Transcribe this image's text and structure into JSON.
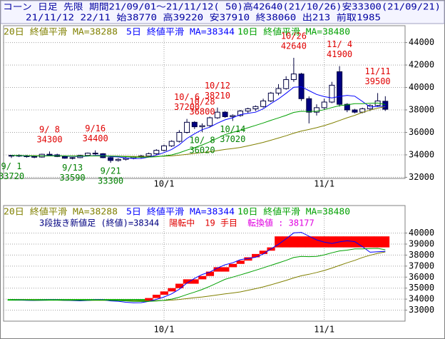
{
  "header": {
    "line1": "コーン 日足 先限 期間21/09/01～21/11/12( 50)高42640(21/10/26)安33300(21/09/21)",
    "line2": "21/11/12 22/11 始38770 高39220 安37910 終38060 出213 前取1985"
  },
  "chart_data": [
    {
      "type": "candlestick",
      "categories": [
        null,
        null,
        null,
        null,
        null,
        null,
        null,
        null,
        null,
        null,
        null,
        null,
        null,
        null,
        null,
        null,
        null,
        null,
        null,
        null,
        "10/1",
        null,
        null,
        null,
        null,
        null,
        null,
        null,
        null,
        null,
        null,
        null,
        null,
        null,
        null,
        null,
        null,
        null,
        null,
        null,
        null,
        "11/1",
        null,
        null,
        null,
        null,
        null,
        null,
        null,
        null
      ],
      "open": [
        33900,
        33950,
        33900,
        33850,
        33800,
        34050,
        34000,
        33850,
        33700,
        33750,
        33950,
        34150,
        34100,
        33750,
        33500,
        33600,
        33700,
        33800,
        33900,
        34100,
        34400,
        34800,
        35200,
        36000,
        36900,
        36500,
        36600,
        37300,
        37800,
        37400,
        37500,
        37900,
        38100,
        38300,
        38800,
        39500,
        39900,
        40700,
        41200,
        39000,
        37800,
        38200,
        38700,
        41400,
        38500,
        38000,
        37800,
        38100,
        38400,
        38770
      ],
      "high": [
        34000,
        34050,
        34000,
        33950,
        34100,
        34300,
        34100,
        33950,
        33800,
        34000,
        34200,
        34400,
        34150,
        33800,
        33700,
        33800,
        33900,
        34000,
        34200,
        34500,
        34900,
        35300,
        36200,
        37200,
        37000,
        36800,
        37400,
        38210,
        37900,
        37600,
        38000,
        38200,
        38400,
        39000,
        39600,
        40300,
        41000,
        42640,
        41300,
        39200,
        38500,
        39000,
        40500,
        41900,
        38600,
        38100,
        38200,
        38500,
        39500,
        39220
      ],
      "low": [
        33720,
        33800,
        33750,
        33700,
        33750,
        33950,
        33800,
        33650,
        33590,
        33700,
        33900,
        34000,
        33700,
        33300,
        33400,
        33500,
        33600,
        33700,
        33800,
        34000,
        34300,
        34700,
        35100,
        35900,
        36300,
        36020,
        36500,
        37200,
        37300,
        37020,
        37400,
        37700,
        37900,
        38200,
        38700,
        39300,
        39800,
        40500,
        38800,
        36800,
        37500,
        38000,
        38600,
        38300,
        37800,
        37700,
        37700,
        37900,
        38300,
        37910
      ],
      "close": [
        33950,
        33900,
        33850,
        33800,
        34050,
        34000,
        33850,
        33700,
        33750,
        33950,
        34150,
        34100,
        33750,
        33500,
        33600,
        33700,
        33800,
        33900,
        34100,
        34400,
        34800,
        35200,
        36000,
        36900,
        36500,
        36600,
        37300,
        37800,
        37400,
        37500,
        37900,
        38100,
        38300,
        38800,
        39500,
        39900,
        40700,
        41200,
        39000,
        37800,
        38200,
        38700,
        40200,
        38500,
        38000,
        37800,
        38100,
        38400,
        38800,
        38060
      ],
      "up_color": "#ffffff",
      "down_color": "#000080",
      "wick_color": "#000040",
      "series": [
        {
          "name": "20日 終値平滑 MA=38288",
          "color": "#808000",
          "values": [
            33950,
            33940,
            33930,
            33920,
            33910,
            33910,
            33910,
            33900,
            33900,
            33900,
            33900,
            33900,
            33900,
            33890,
            33880,
            33870,
            33860,
            33850,
            33850,
            33860,
            33880,
            33910,
            33970,
            34050,
            34130,
            34200,
            34280,
            34380,
            34480,
            34560,
            34660,
            34800,
            34950,
            35110,
            35300,
            35500,
            35700,
            35930,
            36120,
            36260,
            36420,
            36600,
            36820,
            37060,
            37300,
            37520,
            37780,
            37980,
            38160,
            38288
          ]
        },
        {
          "name": "5日 終値平滑 MA=38344",
          "color": "#0000ff",
          "values": [
            33950,
            33930,
            33900,
            33880,
            33910,
            33930,
            33930,
            33890,
            33870,
            33850,
            33880,
            33940,
            33940,
            33840,
            33810,
            33720,
            33670,
            33680,
            33800,
            33980,
            34200,
            34480,
            34900,
            35460,
            35880,
            36240,
            36460,
            36820,
            37120,
            37300,
            37580,
            37700,
            37800,
            38100,
            38560,
            38980,
            39480,
            40020,
            40060,
            39720,
            39380,
            39180,
            39060,
            39200,
            39300,
            39220,
            38760,
            38260,
            38300,
            38344
          ]
        },
        {
          "name": "10日 終値平滑 MA=38480",
          "color": "#00a000",
          "values": [
            33950,
            33940,
            33920,
            33900,
            33900,
            33910,
            33910,
            33900,
            33890,
            33890,
            33900,
            33910,
            33910,
            33890,
            33870,
            33840,
            33800,
            33790,
            33800,
            33830,
            33900,
            34000,
            34180,
            34420,
            34640,
            34880,
            35160,
            35480,
            35800,
            36000,
            36200,
            36410,
            36620,
            36840,
            37070,
            37290,
            37520,
            37780,
            37880,
            37860,
            37880,
            38020,
            38210,
            38380,
            38450,
            38560,
            38560,
            38590,
            38610,
            38480
          ]
        }
      ],
      "annotations": [
        {
          "date": "9/ 1",
          "value": 33720
        },
        {
          "date": "9/ 8",
          "value": 34300
        },
        {
          "date": "9/13",
          "value": 33590
        },
        {
          "date": "9/16",
          "value": 34400
        },
        {
          "date": "9/21",
          "value": 33300
        },
        {
          "date": "10/ 6",
          "value": 37200
        },
        {
          "date": "10/ 8",
          "value": 36020
        },
        {
          "date": "10/12",
          "value": 38210
        },
        {
          "date": "10/14",
          "value": 37020
        },
        {
          "date": "10/26",
          "value": 42640
        },
        {
          "date": "10/28",
          "value": 36800
        },
        {
          "date": "11/ 4",
          "value": 41900
        },
        {
          "date": "11/11",
          "value": 39500
        }
      ],
      "high_label_color": "#e00000",
      "low_label_color": "#008000",
      "ylim": [
        31900,
        45500
      ],
      "yticks": [
        32000,
        34000,
        36000,
        38000,
        40000,
        42000,
        44000
      ],
      "grid": true
    },
    {
      "type": "line_break",
      "status": [
        {
          "text": "3段抜き新値足 (終値)=38344",
          "color": "#000080"
        },
        {
          "text": "陽転中",
          "color": "#e00000"
        },
        {
          "text": "19 手目",
          "color": "#e00000"
        },
        {
          "text": "転換値 : 38177",
          "color": "#e000e0"
        }
      ],
      "bricks": {
        "low": [
          33900,
          33900,
          33900,
          33900,
          33900,
          33900,
          33900,
          33900,
          33900,
          33900,
          33900,
          33900,
          33900,
          33900,
          33900,
          33900,
          33900,
          33900,
          33800,
          34100,
          34400,
          34700,
          35000,
          35400,
          35400,
          35800,
          36100,
          36500,
          36500,
          36900,
          37200,
          37500,
          37800,
          38100,
          38400,
          38700,
          38700,
          38700,
          38700,
          38700,
          38700,
          38700,
          38700,
          38700,
          38700,
          38700,
          38700,
          38700,
          38700,
          38700
        ],
        "high": [
          34000,
          34000,
          34000,
          34000,
          34000,
          34000,
          34000,
          34000,
          34000,
          34000,
          34000,
          34000,
          34000,
          34000,
          34000,
          34000,
          34000,
          34000,
          34100,
          34400,
          34700,
          35000,
          35400,
          35800,
          35800,
          36100,
          36500,
          36900,
          36900,
          37200,
          37500,
          37800,
          38100,
          38400,
          38700,
          39700,
          39700,
          39700,
          39700,
          39700,
          39700,
          39700,
          39700,
          39700,
          39700,
          39700,
          39700,
          39700,
          39700,
          39700
        ],
        "colors": [
          "#00b000",
          "#00b000",
          "#00b000",
          "#00b000",
          "#00b000",
          "#00b000",
          "#00b000",
          "#00b000",
          "#00b000",
          "#00b000",
          "#00b000",
          "#00b000",
          "#00b000",
          "#00b000",
          "#00b000",
          "#00b000",
          "#00b000",
          "#00b000",
          "#ff0000",
          "#ff0000",
          "#ff0000",
          "#ff0000",
          "#ff0000",
          "#ff0000",
          "#ff0000",
          "#ff0000",
          "#ff0000",
          "#ff0000",
          "#ff0000",
          "#ff0000",
          "#ff0000",
          "#ff0000",
          "#ff0000",
          "#ff0000",
          "#ff0000",
          "#ff0000",
          "#ff0000",
          "#ff0000",
          "#ff0000",
          "#ff0000",
          "#ff0000",
          "#ff0000",
          "#ff0000",
          "#ff0000",
          "#ff0000",
          "#ff0000",
          "#ff0000",
          "#ff0000",
          "#ff0000",
          "#ff0000"
        ]
      },
      "ylim": [
        32000,
        42500
      ],
      "yticks": [
        33000,
        34000,
        35000,
        36000,
        37000,
        38000,
        39000,
        40000
      ],
      "grid": true
    }
  ]
}
